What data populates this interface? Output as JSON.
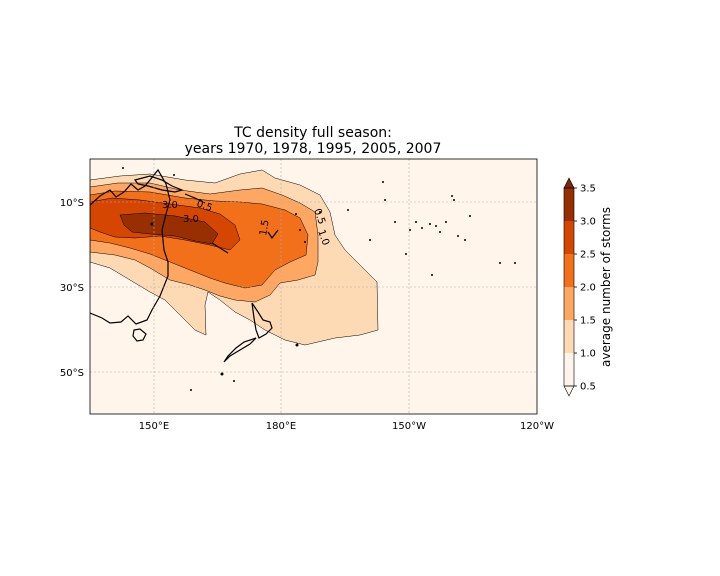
{
  "chart_data": {
    "type": "heatmap",
    "title_line1": "TC density full season:",
    "title_line2": "years 1970, 1978, 1995, 2005, 2007",
    "xlabel": "",
    "ylabel": "",
    "x_ticks": [
      "150°E",
      "180°E",
      "150°W",
      "120°W"
    ],
    "y_ticks": [
      "10°S",
      "30°S",
      "50°S"
    ],
    "x_range_deg_east": [
      135,
      240
    ],
    "y_range_deg_lat": [
      0,
      -60
    ],
    "grid": true,
    "colorbar": {
      "label": "average number of storms",
      "levels": [
        0.5,
        1.0,
        1.5,
        2.0,
        2.5,
        3.0,
        3.5
      ],
      "tick_labels": [
        "0.5",
        "1.0",
        "1.5",
        "2.0",
        "2.5",
        "3.0",
        "3.5"
      ],
      "extend": "both",
      "colors": [
        "#fff5eb",
        "#fdd9b4",
        "#fda762",
        "#f3701b",
        "#d54601",
        "#972f03",
        "#7f2704"
      ]
    },
    "contour_labels": [
      "3.0",
      "3.0",
      "1.5",
      "0.5",
      "1.0",
      "0.5"
    ],
    "background_color": "#fff5eb",
    "coastline_color": "#000000"
  }
}
